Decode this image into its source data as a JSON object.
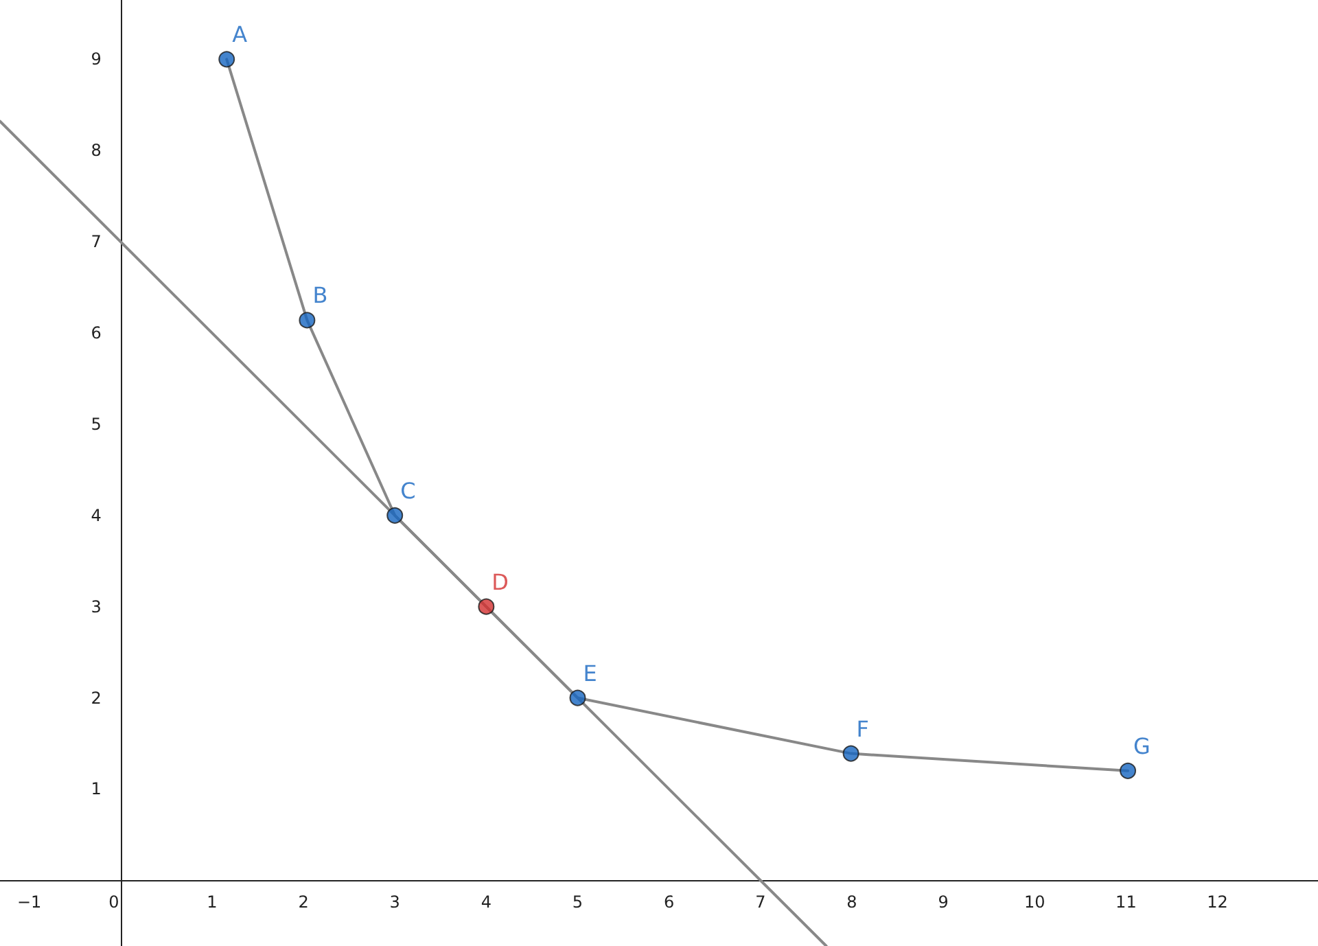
{
  "chart_data": {
    "type": "line",
    "xlim": [
      -1.32,
      13.1
    ],
    "ylim": [
      -0.72,
      9.65
    ],
    "xticks": [
      {
        "value": -1,
        "label": "−1"
      },
      0,
      1,
      2,
      3,
      4,
      5,
      6,
      7,
      8,
      9,
      10,
      11,
      12
    ],
    "yticks": [
      1,
      2,
      3,
      4,
      5,
      6,
      7,
      8,
      9
    ],
    "grid": false,
    "series": [
      {
        "type": "line",
        "color": "#888888",
        "marker": "none",
        "x": [
          1.16,
          2.04,
          3,
          5,
          7.99,
          11.02
        ],
        "values": [
          9,
          6.14,
          4,
          2,
          1.39,
          1.2
        ]
      },
      {
        "type": "line",
        "color": "#888888",
        "marker": "none",
        "x": [
          -1.32,
          7.72
        ],
        "values": [
          8.32,
          -0.72
        ]
      },
      {
        "type": "scatter",
        "color": "#1565c0",
        "marker": "circle",
        "x": [
          1.16,
          2.04,
          3,
          5,
          7.99,
          11.02
        ],
        "values": [
          9,
          6.14,
          4,
          2,
          1.39,
          1.2
        ]
      },
      {
        "type": "scatter",
        "color": "#d32f2f",
        "marker": "circle",
        "x": [
          4
        ],
        "values": [
          3
        ]
      }
    ],
    "annotations": [
      {
        "text": "A",
        "x": 1.16,
        "y": 9
      },
      {
        "text": "B",
        "x": 2.04,
        "y": 6.14
      },
      {
        "text": "C",
        "x": 3,
        "y": 4
      },
      {
        "text": "D",
        "x": 4,
        "y": 3
      },
      {
        "text": "E",
        "x": 5,
        "y": 2
      },
      {
        "text": "F",
        "x": 7.99,
        "y": 1.39
      },
      {
        "text": "G",
        "x": 11.02,
        "y": 1.2
      }
    ]
  }
}
